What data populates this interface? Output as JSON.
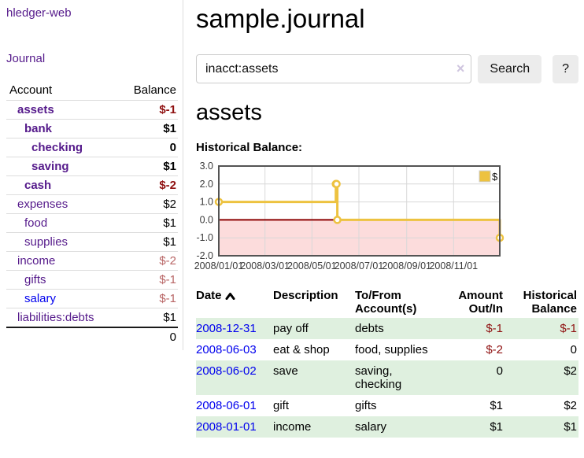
{
  "app": {
    "brand": "hledger-web",
    "nav_journal": "Journal"
  },
  "sidebar": {
    "headers": {
      "account": "Account",
      "balance": "Balance"
    },
    "accounts": [
      {
        "name": "assets",
        "balance": "$-1"
      },
      {
        "name": "bank",
        "balance": "$1"
      },
      {
        "name": "checking",
        "balance": "0"
      },
      {
        "name": "saving",
        "balance": "$1"
      },
      {
        "name": "cash",
        "balance": "$-2"
      },
      {
        "name": "expenses",
        "balance": "$2"
      },
      {
        "name": "food",
        "balance": "$1"
      },
      {
        "name": "supplies",
        "balance": "$1"
      },
      {
        "name": "income",
        "balance": "$-2"
      },
      {
        "name": "gifts",
        "balance": "$-1"
      },
      {
        "name": "salary",
        "balance": "$-1"
      },
      {
        "name": "liabilities:debts",
        "balance": "$1"
      }
    ],
    "total": "0"
  },
  "main": {
    "title": "sample.journal",
    "search": {
      "value": "inacct:assets",
      "clear": "×",
      "search_button": "Search",
      "help_button": "?"
    },
    "account_heading": "assets",
    "section_label": "Historical Balance:"
  },
  "chart_data": {
    "type": "line",
    "step": true,
    "title": "Historical Balance of assets",
    "xlim": [
      "2008-01-01",
      "2008-12-31"
    ],
    "ylim": [
      -2,
      3
    ],
    "grid": true,
    "legend": {
      "label": "$",
      "position": "top-right"
    },
    "series": [
      {
        "name": "$",
        "color": "#edc240",
        "points": [
          [
            "2008-01-01",
            1
          ],
          [
            "2008-06-01",
            2
          ],
          [
            "2008-06-02",
            2
          ],
          [
            "2008-06-03",
            0
          ],
          [
            "2008-12-31",
            -1
          ]
        ]
      }
    ],
    "y_ticks": [
      {
        "label": "3.0",
        "value": 3
      },
      {
        "label": "2.0",
        "value": 2
      },
      {
        "label": "1.0",
        "value": 1
      },
      {
        "label": "0.0",
        "value": 0
      },
      {
        "label": "-1.0",
        "value": -1
      },
      {
        "label": "-2.0",
        "value": -2
      }
    ],
    "x_ticks": [
      {
        "label": "2008/01/01",
        "date": "2008-01-01"
      },
      {
        "label": "2008/03/01",
        "date": "2008-03-01"
      },
      {
        "label": "2008/05/01",
        "date": "2008-05-01"
      },
      {
        "label": "2008/07/01",
        "date": "2008-07-01"
      },
      {
        "label": "2008/09/01",
        "date": "2008-09-01"
      },
      {
        "label": "2008/11/01",
        "date": "2008-11-01"
      }
    ],
    "negative_region_color": "#fcdcdc",
    "zero_line_color": "#8b0000",
    "grid_color": "#d8d8d8",
    "border_color": "#545454"
  },
  "register": {
    "headers": [
      "Date",
      "Description",
      "To/From Account(s)",
      "Amount Out/In",
      "Historical Balance"
    ],
    "rows": [
      {
        "date": "2008-12-31",
        "description": "pay off",
        "accounts": "debts",
        "amount": "$-1",
        "balance": "$-1"
      },
      {
        "date": "2008-06-03",
        "description": "eat & shop",
        "accounts": "food, supplies",
        "amount": "$-2",
        "balance": "0"
      },
      {
        "date": "2008-06-02",
        "description": "save",
        "accounts": "saving, checking",
        "amount": "0",
        "balance": "$2"
      },
      {
        "date": "2008-06-01",
        "description": "gift",
        "accounts": "gifts",
        "amount": "$1",
        "balance": "$2"
      },
      {
        "date": "2008-01-01",
        "description": "income",
        "accounts": "salary",
        "amount": "$1",
        "balance": "$1"
      }
    ]
  }
}
